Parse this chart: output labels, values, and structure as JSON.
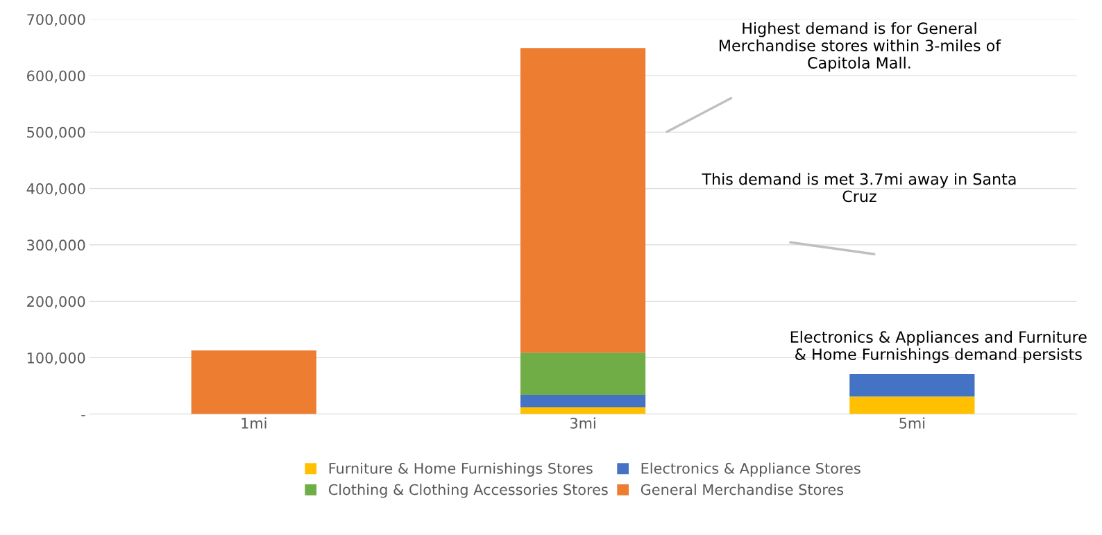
{
  "chart_data": {
    "type": "bar",
    "stacked": true,
    "categories": [
      "1mi",
      "3mi",
      "5mi"
    ],
    "series": [
      {
        "name": "Furniture & Home Furnishings Stores",
        "color": "#ffc000",
        "values": [
          0,
          12000,
          31000
        ]
      },
      {
        "name": "Electronics & Appliance Stores",
        "color": "#4472c4",
        "values": [
          0,
          22000,
          40000
        ]
      },
      {
        "name": "Clothing & Clothing Accessories Stores",
        "color": "#70ad47",
        "values": [
          0,
          75000,
          0
        ]
      },
      {
        "name": "General Merchandise Stores",
        "color": "#ed7d31",
        "values": [
          113000,
          540000,
          0
        ]
      }
    ],
    "ylim": [
      0,
      700000
    ],
    "yticks": [
      {
        "value": 0,
        "label": "-"
      },
      {
        "value": 100000,
        "label": "100,000"
      },
      {
        "value": 200000,
        "label": "200,000"
      },
      {
        "value": 300000,
        "label": "300,000"
      },
      {
        "value": 400000,
        "label": "400,000"
      },
      {
        "value": 500000,
        "label": "500,000"
      },
      {
        "value": 600000,
        "label": "600,000"
      },
      {
        "value": 700000,
        "label": "700,000"
      }
    ],
    "grid": "y",
    "legend": "bottom",
    "annotations": [
      "Highest demand is for General\nMerchandise stores within 3-miles of\nCapitola Mall.",
      "This demand is met 3.7mi away in Santa\nCruz",
      "Electronics & Appliances and Furniture\n& Home Furnishings demand persists"
    ]
  }
}
